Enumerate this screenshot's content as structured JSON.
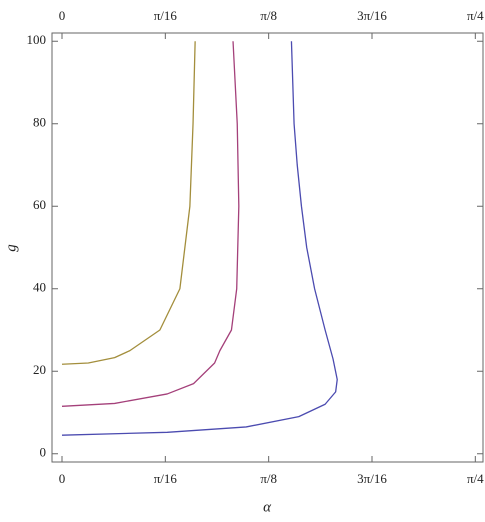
{
  "chart_data": {
    "type": "line",
    "x_label": "α",
    "y_label": "g",
    "xlim": [
      -0.019,
      0.8
    ],
    "ylim": [
      -2,
      102
    ],
    "xticks": [
      0,
      {
        "value": 0.19635,
        "label": "π/16"
      },
      {
        "value": 0.3927,
        "label": "π/8"
      },
      {
        "value": 0.58905,
        "label": "3π/16"
      },
      {
        "value": 0.7854,
        "label": "π/4"
      }
    ],
    "yticks": [
      0,
      20,
      40,
      60,
      80,
      100
    ],
    "series": [
      {
        "color": "#a38e3c",
        "x": [
          0,
          0.05,
          0.1,
          0.129,
          0.186,
          0.224,
          0.243,
          0.249,
          0.253
        ],
        "values": [
          21.7,
          22.0,
          23.3,
          25,
          30,
          40,
          60,
          80,
          100
        ]
      },
      {
        "color": "#a4407a",
        "x": [
          0,
          0.1,
          0.2,
          0.25,
          0.29,
          0.3,
          0.322,
          0.332,
          0.336,
          0.333,
          0.325
        ],
        "values": [
          11.5,
          12.2,
          14.5,
          17,
          22,
          25,
          30,
          40,
          60,
          80,
          100
        ]
      },
      {
        "color": "#4b4bb0",
        "x": [
          0,
          0.2,
          0.35,
          0.45,
          0.5,
          0.52,
          0.523,
          0.515,
          0.5,
          0.48,
          0.465,
          0.455,
          0.447,
          0.441,
          0.436
        ],
        "values": [
          4.5,
          5.2,
          6.5,
          9,
          12,
          15,
          18,
          23,
          30,
          40,
          50,
          60,
          70,
          80,
          100
        ]
      }
    ]
  }
}
